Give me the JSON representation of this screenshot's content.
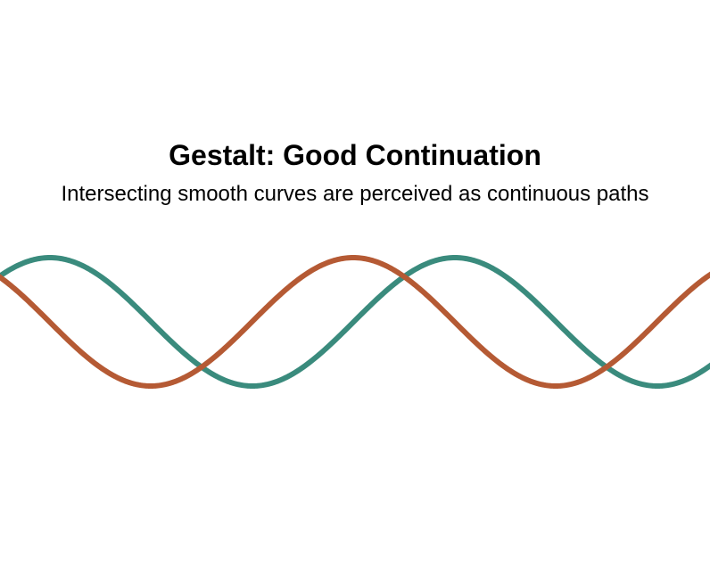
{
  "figure": {
    "title": "Gestalt: Good Continuation",
    "subtitle": "Intersecting smooth curves are perceived as continuous paths"
  },
  "curves": [
    {
      "name": "teal-curve",
      "color": "#3a8b7d"
    },
    {
      "name": "orange-curve",
      "color": "#b55a34"
    }
  ]
}
